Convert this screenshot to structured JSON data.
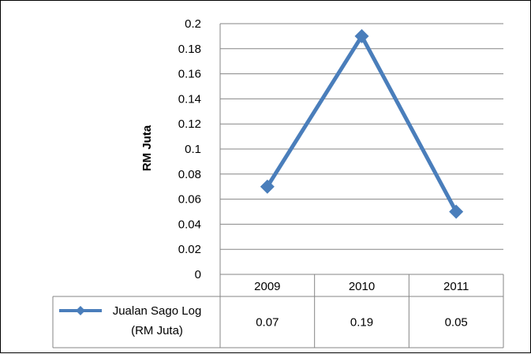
{
  "chart_data": {
    "type": "line",
    "title": "",
    "xlabel": "",
    "ylabel": "RM Juta",
    "categories": [
      "2009",
      "2010",
      "2011"
    ],
    "series": [
      {
        "name": "Jualan Sago Log (RM Juta)",
        "name_lines": [
          "Jualan Sago Log",
          "(RM Juta)"
        ],
        "values": [
          0.07,
          0.19,
          0.05
        ],
        "value_labels": [
          "0.07",
          "0.19",
          "0.05"
        ],
        "color": "#4a7ebb",
        "marker": "diamond"
      }
    ],
    "ylim": [
      0,
      0.2
    ],
    "yticks": [
      "0",
      "0.02",
      "0.04",
      "0.06",
      "0.08",
      "0.1",
      "0.12",
      "0.14",
      "0.16",
      "0.18",
      "0.2"
    ],
    "grid": true,
    "legend": "data-table",
    "gridline_color": "#868686",
    "axis_color": "#868686"
  }
}
